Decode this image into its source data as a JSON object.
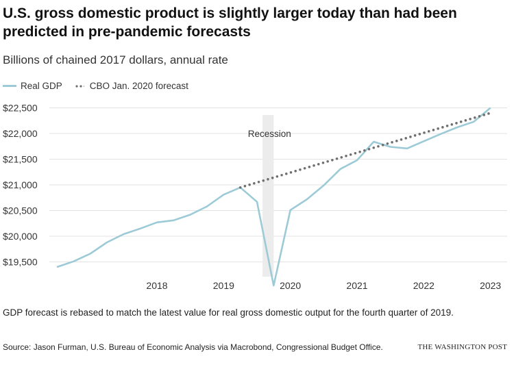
{
  "header": {
    "title": "U.S. gross domestic product is slightly larger today than had been predicted in pre-pandemic forecasts",
    "subtitle": "Billions of chained 2017 dollars, annual rate"
  },
  "footer": {
    "note": "GDP forecast is rebased to match the latest value for real gross domestic output for the fourth quarter of 2019.",
    "source": "Source: Jason Furman, U.S. Bureau of Economic Analysis via Macrobond, Congressional Budget Office.",
    "brand": "THE WASHINGTON POST"
  },
  "colors": {
    "gdp_line": "#9ccad6",
    "forecast_dots": "#6f6f6f",
    "recession_band": "#ececec",
    "gridline": "#e3e3e3"
  },
  "chart_data": {
    "type": "line",
    "title": "U.S. gross domestic product is slightly larger today than had been predicted in pre-pandemic forecasts",
    "subtitle": "Billions of chained 2017 dollars, annual rate",
    "xlabel": "",
    "ylabel": "",
    "x_tick_labels": [
      "2018",
      "2019",
      "2020",
      "2021",
      "2022",
      "2023"
    ],
    "y_ticks": [
      19500,
      20000,
      20500,
      21000,
      21500,
      22000,
      22500
    ],
    "y_tick_labels": [
      "$19,500",
      "$20,000",
      "$20,500",
      "$21,000",
      "$21,500",
      "$22,000",
      "$22,500"
    ],
    "ylim": [
      19000,
      22600
    ],
    "grid": true,
    "legend_position": "top-left",
    "annotations": [
      {
        "text": "Recession",
        "x_range": [
          "2020-02",
          "2020-04"
        ]
      }
    ],
    "series": [
      {
        "name": "Real GDP",
        "style": "solid",
        "x": [
          "2017-Q1",
          "2017-Q2",
          "2017-Q3",
          "2017-Q4",
          "2018-Q1",
          "2018-Q2",
          "2018-Q3",
          "2018-Q4",
          "2019-Q1",
          "2019-Q2",
          "2019-Q3",
          "2019-Q4",
          "2020-Q1",
          "2020-Q2",
          "2020-Q3",
          "2020-Q4",
          "2021-Q1",
          "2021-Q2",
          "2021-Q3",
          "2021-Q4",
          "2022-Q1",
          "2022-Q2",
          "2022-Q3",
          "2022-Q4",
          "2023-Q1",
          "2023-Q2",
          "2023-Q3"
        ],
        "values": [
          19400,
          19510,
          19660,
          19880,
          20040,
          20150,
          20270,
          20310,
          20420,
          20580,
          20810,
          20950,
          20670,
          19040,
          20510,
          20720,
          20990,
          21310,
          21480,
          21840,
          21740,
          21710,
          21850,
          21990,
          22120,
          22230,
          22500
        ]
      },
      {
        "name": "CBO Jan. 2020 forecast",
        "style": "dotted",
        "x": [
          "2019-Q4",
          "2023-Q3"
        ],
        "values": [
          20950,
          22400
        ]
      }
    ]
  }
}
